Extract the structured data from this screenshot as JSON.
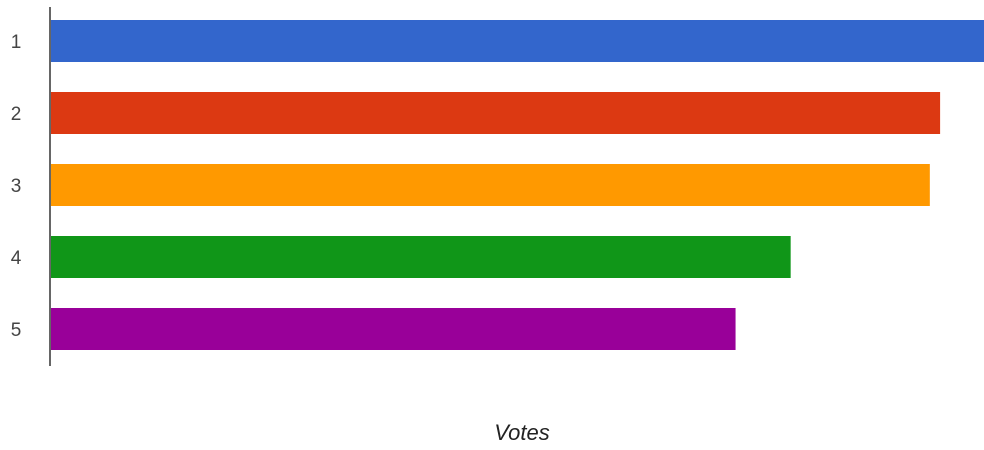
{
  "chart_data": {
    "type": "bar",
    "orientation": "horizontal",
    "categories": [
      "1",
      "2",
      "3",
      "4",
      "5"
    ],
    "values": [
      100,
      95.3,
      94.2,
      79.3,
      73.4
    ],
    "colors": [
      "#3366cc",
      "#dc3912",
      "#ff9900",
      "#109618",
      "#990099"
    ],
    "xlabel": "Votes",
    "ylabel": "",
    "title": "",
    "xlim": [
      0,
      100
    ],
    "grid": false,
    "legend": "none"
  }
}
